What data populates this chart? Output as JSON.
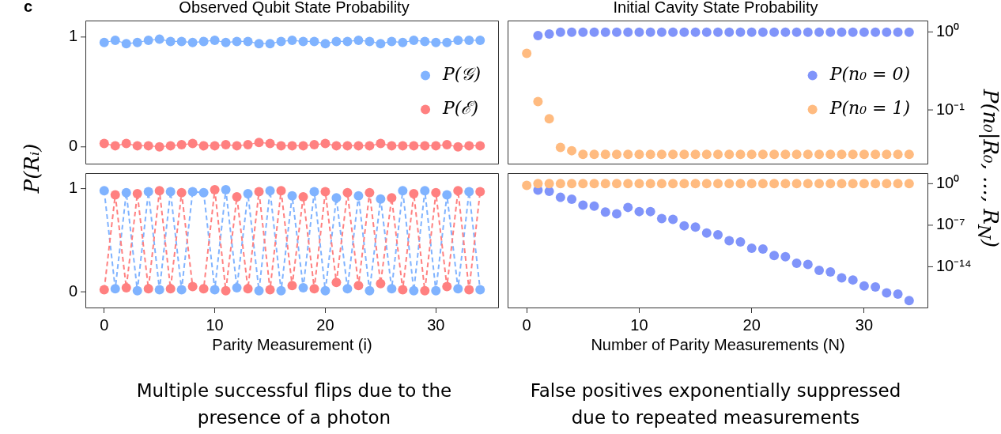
{
  "chart_data": [
    {
      "type": "line",
      "title": "Observed Qubit State Probability",
      "ylabel": "P(Rᵢ)",
      "annotations": [
        "c"
      ],
      "line_style": "solid",
      "marker": "circle",
      "legend": "right",
      "grid": false,
      "tick_labels": "y",
      "x": [
        0,
        1,
        2,
        3,
        4,
        5,
        6,
        7,
        8,
        9,
        10,
        11,
        12,
        13,
        14,
        15,
        16,
        17,
        18,
        19,
        20,
        21,
        22,
        23,
        24,
        25,
        26,
        27,
        28,
        29,
        30,
        31,
        32,
        33,
        34
      ],
      "xlim": [
        -1.7,
        35.7
      ],
      "ylim": [
        -0.16,
        1.15
      ],
      "yticks": [
        {
          "value": 0,
          "label": "0"
        },
        {
          "value": 1,
          "label": "1"
        }
      ],
      "series": [
        {
          "name": "P(𝒢)",
          "color": "#80b3ff",
          "values": [
            0.95,
            0.97,
            0.94,
            0.95,
            0.97,
            0.98,
            0.96,
            0.96,
            0.95,
            0.96,
            0.97,
            0.95,
            0.96,
            0.96,
            0.94,
            0.94,
            0.96,
            0.97,
            0.96,
            0.96,
            0.94,
            0.96,
            0.96,
            0.97,
            0.96,
            0.94,
            0.96,
            0.95,
            0.97,
            0.96,
            0.95,
            0.95,
            0.97,
            0.97,
            0.97
          ]
        },
        {
          "name": "P(ℰ)",
          "color": "#ff8080",
          "values": [
            0.03,
            0.01,
            0.03,
            0.01,
            0.01,
            0.0,
            0.01,
            0.02,
            0.03,
            0.01,
            0.01,
            0.02,
            0.01,
            0.02,
            0.04,
            0.03,
            0.01,
            0.01,
            0.01,
            0.02,
            0.03,
            0.01,
            0.01,
            0.01,
            0.01,
            0.03,
            0.01,
            0.01,
            0.01,
            0.01,
            0.01,
            0.02,
            0.0,
            0.01,
            0.01
          ]
        }
      ]
    },
    {
      "type": "scatter",
      "title": "Initial Cavity State Probability",
      "ylabel": "P(n₀|R₀, ..., R$_{N}$)",
      "marker": "circle",
      "legend": "right",
      "grid": false,
      "tick_labels": "y",
      "log": "y",
      "x": [
        0,
        1,
        2,
        3,
        4,
        5,
        6,
        7,
        8,
        9,
        10,
        11,
        12,
        13,
        14,
        15,
        16,
        17,
        18,
        19,
        20,
        21,
        22,
        23,
        24,
        25,
        26,
        27,
        28,
        29,
        30,
        31,
        32,
        33,
        34
      ],
      "xlim": [
        -1.7,
        35.7
      ],
      "ylim": [
        0.02,
        1.4
      ],
      "yticks": [
        {
          "value": 1,
          "label": "10⁰"
        },
        {
          "value": 0.1,
          "label": "10⁻¹"
        }
      ],
      "series": [
        {
          "name": "P(n₀ = 0)",
          "color": "#8094fa",
          "values": [
            null,
            0.9,
            0.94,
            0.99,
            0.99,
            0.99,
            0.99,
            0.99,
            0.99,
            0.99,
            0.99,
            0.99,
            0.99,
            0.99,
            0.99,
            0.99,
            0.99,
            0.99,
            0.99,
            0.99,
            0.99,
            0.99,
            0.99,
            0.99,
            0.99,
            0.99,
            0.99,
            0.99,
            0.99,
            0.99,
            0.99,
            0.99,
            0.99,
            0.99,
            0.99
          ]
        },
        {
          "name": "P(n₀ = 1)",
          "color": "#ffbb80",
          "values": [
            0.53,
            0.128,
            0.077,
            0.033,
            0.03,
            0.027,
            0.027,
            0.027,
            0.027,
            0.027,
            0.027,
            0.027,
            0.027,
            0.027,
            0.027,
            0.027,
            0.027,
            0.027,
            0.027,
            0.027,
            0.027,
            0.027,
            0.027,
            0.027,
            0.027,
            0.027,
            0.027,
            0.027,
            0.027,
            0.027,
            0.027,
            0.027,
            0.027,
            0.027,
            0.027
          ]
        }
      ]
    },
    {
      "type": "line",
      "xlabel": "Parity Measurement (i)",
      "annotations": [
        "Multiple successful flips due to the presence of a photon"
      ],
      "line_style": "dashed",
      "marker": "circle",
      "grid": false,
      "x": [
        0,
        1,
        2,
        3,
        4,
        5,
        6,
        7,
        8,
        9,
        10,
        11,
        12,
        13,
        14,
        15,
        16,
        17,
        18,
        19,
        20,
        21,
        22,
        23,
        24,
        25,
        26,
        27,
        28,
        29,
        30,
        31,
        32,
        33,
        34
      ],
      "xlim": [
        -1.7,
        35.7
      ],
      "xticks": [
        {
          "value": 0,
          "label": "0"
        },
        10,
        20,
        30
      ],
      "ylim": [
        -0.16,
        1.15
      ],
      "yticks": [
        {
          "value": 0,
          "label": "0"
        },
        {
          "value": 1,
          "label": "1"
        }
      ],
      "series": [
        {
          "color": "#80b3ff",
          "values": [
            0.98,
            0.03,
            0.96,
            0.01,
            0.97,
            0.02,
            0.97,
            0.02,
            0.97,
            0.96,
            0.02,
            0.99,
            0.04,
            0.95,
            0.01,
            0.98,
            0.01,
            0.93,
            0.04,
            0.97,
            0.01,
            0.91,
            0.03,
            0.93,
            0.01,
            0.9,
            0.03,
            0.98,
            0.01,
            0.98,
            0.01,
            0.94,
            0.03,
            0.97,
            0.02
          ]
        },
        {
          "color": "#ff8080",
          "values": [
            0.02,
            0.94,
            0.04,
            0.95,
            0.03,
            0.98,
            0.03,
            0.96,
            0.05,
            0.03,
            0.99,
            0.01,
            0.92,
            0.03,
            0.97,
            0.02,
            0.98,
            0.06,
            0.92,
            0.03,
            0.97,
            0.09,
            0.96,
            0.06,
            0.96,
            0.08,
            0.91,
            0.02,
            0.95,
            0.01,
            0.96,
            0.05,
            0.98,
            0.02,
            0.97
          ]
        }
      ]
    },
    {
      "type": "scatter",
      "xlabel": "Number of Parity Measurements (N)",
      "annotations": [
        "False positives exponentially suppressed due to repeated measurements"
      ],
      "marker": "circle",
      "grid": false,
      "log": "y",
      "x": [
        0,
        1,
        2,
        3,
        4,
        5,
        6,
        7,
        8,
        9,
        10,
        11,
        12,
        13,
        14,
        15,
        16,
        17,
        18,
        19,
        20,
        21,
        22,
        23,
        24,
        25,
        26,
        27,
        28,
        29,
        30,
        31,
        32,
        33,
        34
      ],
      "xlim": [
        -1.7,
        35.7
      ],
      "xticks": [
        {
          "value": 0,
          "label": "0"
        },
        10,
        20,
        30
      ],
      "ylim": [
        1e-21,
        60
      ],
      "yticks": [
        {
          "value": 1,
          "label": "10⁰"
        },
        {
          "value": 1e-07,
          "label": "10⁻⁷"
        },
        {
          "value": 1e-14,
          "label": "10⁻¹⁴"
        }
      ],
      "series": [
        {
          "color": "#8094fa",
          "values": [
            null,
            0.08,
            0.05,
            0.005,
            0.0025,
            0.00025,
            0.00016,
            1.6e-05,
            8e-06,
            0.0001,
            2e-05,
            2e-05,
            1.3e-06,
            1e-06,
            8e-08,
            5e-08,
            5e-09,
            2.5e-09,
            2.5e-10,
            1.6e-10,
            1.3e-11,
            1e-11,
            8e-13,
            5e-13,
            4e-14,
            2.5e-14,
            2.5e-15,
            1.3e-15,
            1.3e-16,
            6e-17,
            6e-18,
            4e-18,
            4e-19,
            2.5e-19,
            2e-20
          ]
        },
        {
          "color": "#ffbb80",
          "values": [
            0.5,
            1,
            1,
            1,
            1,
            1,
            1,
            1,
            1,
            1,
            1,
            1,
            1,
            1,
            1,
            1,
            1,
            1,
            1,
            1,
            1,
            1,
            1,
            1,
            1,
            1,
            1,
            1,
            1,
            1,
            1,
            1,
            1,
            1,
            1
          ]
        }
      ]
    }
  ]
}
